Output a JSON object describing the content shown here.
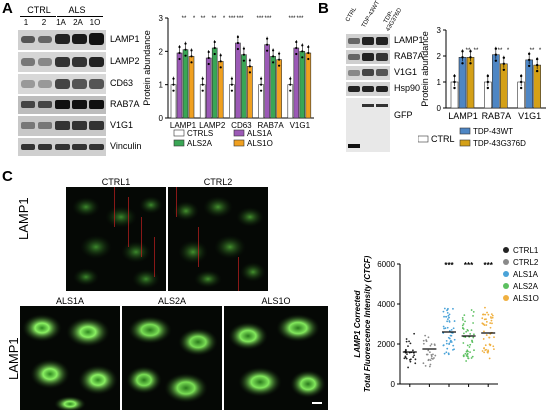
{
  "panels": {
    "a": "A",
    "b": "B",
    "c": "C"
  },
  "panelA": {
    "groups": [
      {
        "label": "CTRL",
        "lanes": [
          "1",
          "2"
        ]
      },
      {
        "label": "ALS",
        "lanes": [
          "1A",
          "2A",
          "1O"
        ]
      }
    ],
    "blots": [
      "LAMP1",
      "LAMP2",
      "CD63",
      "RAB7A",
      "V1G1",
      "Vinculin"
    ]
  },
  "panelB": {
    "lanes": [
      "CTRL",
      "TDP-43WT",
      "TDP-43G376D"
    ],
    "blots": [
      "LAMP1",
      "RAB7A",
      "V1G1",
      "Hsp90",
      "GFP"
    ]
  },
  "panelC": {
    "ctrl_images": [
      "CTRL1",
      "CTRL2"
    ],
    "als_images": [
      "ALS1A",
      "ALS2A",
      "ALS1O"
    ],
    "row_label": "LAMP1"
  },
  "colors": {
    "ctrls": "#ffffff",
    "als1a": "#9b59b6",
    "als2a": "#3aa655",
    "als1o": "#f0a020",
    "ctrl": "#ffffff",
    "tdp_wt": "#4e86c4",
    "tdp_g376d": "#d4a017",
    "ctrl1": "#222222",
    "ctrl2": "#8a8a8a",
    "als1a_dot": "#4aa3d8",
    "als2a_dot": "#5cc060",
    "als1o_dot": "#f0b040"
  },
  "chart_data": [
    {
      "type": "bar",
      "panel": "A",
      "categories": [
        "LAMP1",
        "LAMP2",
        "CD63",
        "RAB7A",
        "V1G1"
      ],
      "ylabel": "Protein abundance",
      "ylim": [
        0,
        3
      ],
      "yticks": [
        "0",
        "1",
        "2",
        "3"
      ],
      "series": [
        {
          "name": "CTRLS",
          "values": [
            1.0,
            1.0,
            1.0,
            1.0,
            1.0
          ]
        },
        {
          "name": "ALS1A",
          "values": [
            1.95,
            1.8,
            2.25,
            2.2,
            2.1
          ]
        },
        {
          "name": "ALS2A",
          "values": [
            2.05,
            2.1,
            1.9,
            1.85,
            2.0
          ]
        },
        {
          "name": "ALS1O",
          "values": [
            1.85,
            1.7,
            1.55,
            1.75,
            1.95
          ]
        }
      ],
      "annotations": [
        "**",
        "*",
        "**",
        "**",
        "*",
        "***",
        "***",
        "***",
        "***",
        "***",
        "***"
      ],
      "legend": "bottom"
    },
    {
      "type": "bar",
      "panel": "B",
      "categories": [
        "LAMP1",
        "RAB7A",
        "V1G1"
      ],
      "ylabel": "Protein abundance",
      "ylim": [
        0,
        3
      ],
      "yticks": [
        "0",
        "1",
        "2",
        "3"
      ],
      "series": [
        {
          "name": "CTRL",
          "values": [
            1.0,
            1.0,
            1.0
          ]
        },
        {
          "name": "TDP-43WT",
          "values": [
            1.95,
            2.05,
            1.85
          ]
        },
        {
          "name": "TDP-43G376D",
          "values": [
            1.95,
            1.7,
            1.65
          ]
        }
      ],
      "annotations": [
        "**",
        "**",
        "**",
        "*",
        "**",
        "*"
      ],
      "legend": "bottom"
    },
    {
      "type": "scatter",
      "panel": "C",
      "categories": [
        "CTRL1",
        "CTRL2",
        "ALS1A",
        "ALS2A",
        "ALS1O"
      ],
      "ylabel_line1": "LAMP1 Corrected",
      "ylabel_line2": "Total Fluorescence Intensity (CTCF)",
      "ylim": [
        0,
        6000
      ],
      "yticks": [
        "0",
        "2000",
        "4000",
        "6000"
      ],
      "medians": [
        1600,
        1750,
        2600,
        2400,
        2550
      ],
      "annotations": [
        "***",
        "***",
        "***"
      ],
      "legend": "top-right"
    }
  ]
}
